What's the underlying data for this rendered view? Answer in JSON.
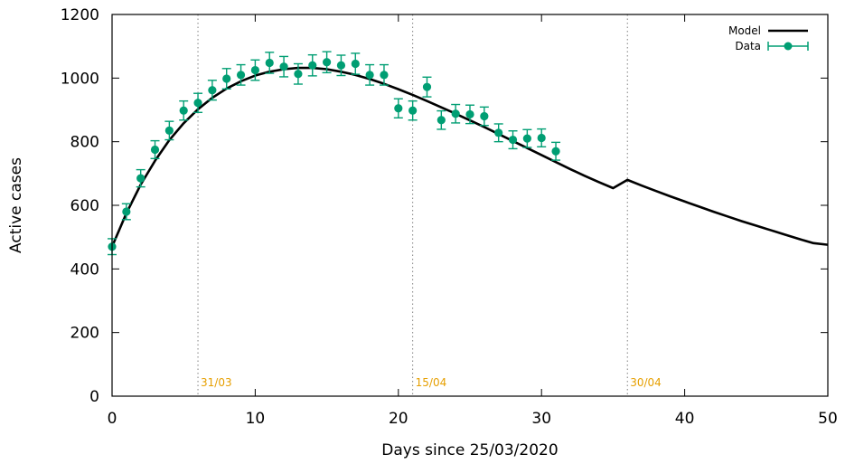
{
  "chart_data": {
    "type": "scatter",
    "title": "",
    "xlabel": "Days since 25/03/2020",
    "ylabel": "Active cases",
    "xlim": [
      0,
      50
    ],
    "ylim": [
      0,
      1200
    ],
    "xticks": [
      0,
      10,
      20,
      30,
      40,
      50
    ],
    "yticks": [
      0,
      200,
      400,
      600,
      800,
      1000,
      1200
    ],
    "grid": false,
    "legend_position": "top-right",
    "colors": {
      "data": "#009e73",
      "model": "#000000",
      "marker_lines": "#808080",
      "date_labels": "#e69f00"
    },
    "vertical_markers": [
      {
        "x": 6,
        "label": "31/03"
      },
      {
        "x": 21,
        "label": "15/04"
      },
      {
        "x": 36,
        "label": "30/04"
      }
    ],
    "series": [
      {
        "name": "Model",
        "kind": "line",
        "x": [
          0,
          1,
          2,
          3,
          4,
          5,
          6,
          7,
          8,
          9,
          10,
          11,
          12,
          13,
          14,
          15,
          16,
          17,
          18,
          19,
          20,
          21,
          22,
          23,
          24,
          25,
          26,
          27,
          28,
          29,
          30,
          31,
          32,
          33,
          34,
          35,
          36,
          37,
          38,
          39,
          40,
          41,
          42,
          43,
          44,
          45,
          46,
          47,
          48,
          49,
          50
        ],
        "y": [
          470,
          575,
          665,
          740,
          805,
          858,
          902,
          938,
          967,
          990,
          1008,
          1020,
          1028,
          1032,
          1032,
          1028,
          1020,
          1010,
          997,
          982,
          965,
          947,
          928,
          908,
          888,
          867,
          846,
          824,
          802,
          780,
          758,
          736,
          714,
          693,
          673,
          654,
          680,
          662,
          645,
          628,
          612,
          596,
          580,
          565,
          550,
          536,
          522,
          508,
          494,
          481,
          476
        ]
      },
      {
        "name": "Data",
        "kind": "points_with_errorbars",
        "x": [
          0,
          1,
          2,
          3,
          4,
          5,
          6,
          7,
          8,
          9,
          10,
          11,
          12,
          13,
          14,
          15,
          16,
          17,
          18,
          19,
          20,
          21,
          22,
          23,
          24,
          25,
          26,
          27,
          28,
          29,
          30,
          31
        ],
        "y": [
          470,
          580,
          685,
          775,
          835,
          898,
          922,
          962,
          998,
          1010,
          1025,
          1048,
          1036,
          1013,
          1040,
          1050,
          1040,
          1045,
          1010,
          1010,
          905,
          898,
          972,
          868,
          888,
          886,
          880,
          828,
          806,
          810,
          812,
          770
        ],
        "yerr": [
          25,
          25,
          27,
          28,
          29,
          30,
          30,
          31,
          32,
          32,
          32,
          33,
          32,
          32,
          33,
          33,
          32,
          33,
          32,
          32,
          30,
          30,
          31,
          29,
          29,
          29,
          29,
          28,
          28,
          28,
          28,
          28
        ]
      }
    ]
  }
}
